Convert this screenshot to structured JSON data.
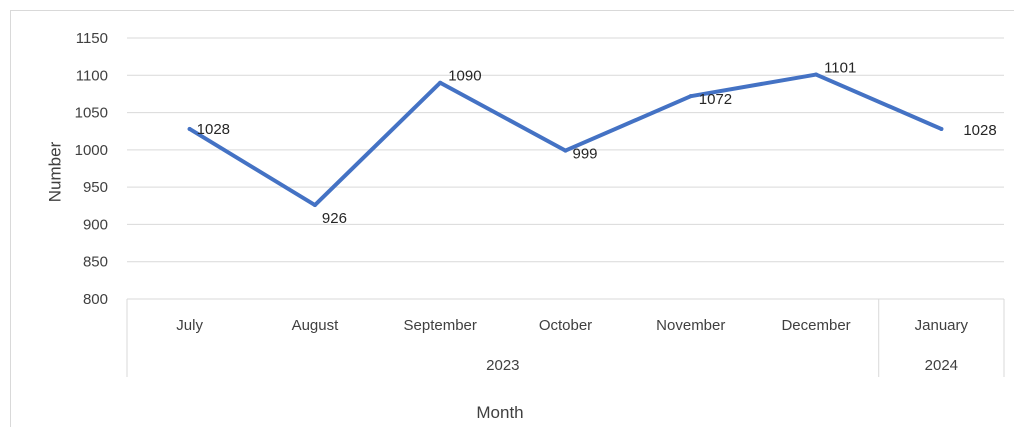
{
  "chart_data": {
    "type": "line",
    "title": "",
    "xlabel": "Month",
    "ylabel": "Number",
    "ylim": [
      800,
      1150
    ],
    "yticks": [
      800,
      850,
      900,
      950,
      1000,
      1050,
      1100,
      1150
    ],
    "grid": "horizontal",
    "legend": "none",
    "line_color": "#4472c4",
    "categories": [
      "July",
      "August",
      "September",
      "October",
      "November",
      "December",
      "January"
    ],
    "year_groups": [
      {
        "label": "2023",
        "count": 6
      },
      {
        "label": "2024",
        "count": 1
      }
    ],
    "series": [
      {
        "values": [
          1028,
          926,
          1090,
          999,
          1072,
          1101,
          1028
        ]
      }
    ],
    "data_labels": [
      "1028",
      "926",
      "1090",
      "999",
      "1072",
      "1101",
      "1028"
    ]
  }
}
